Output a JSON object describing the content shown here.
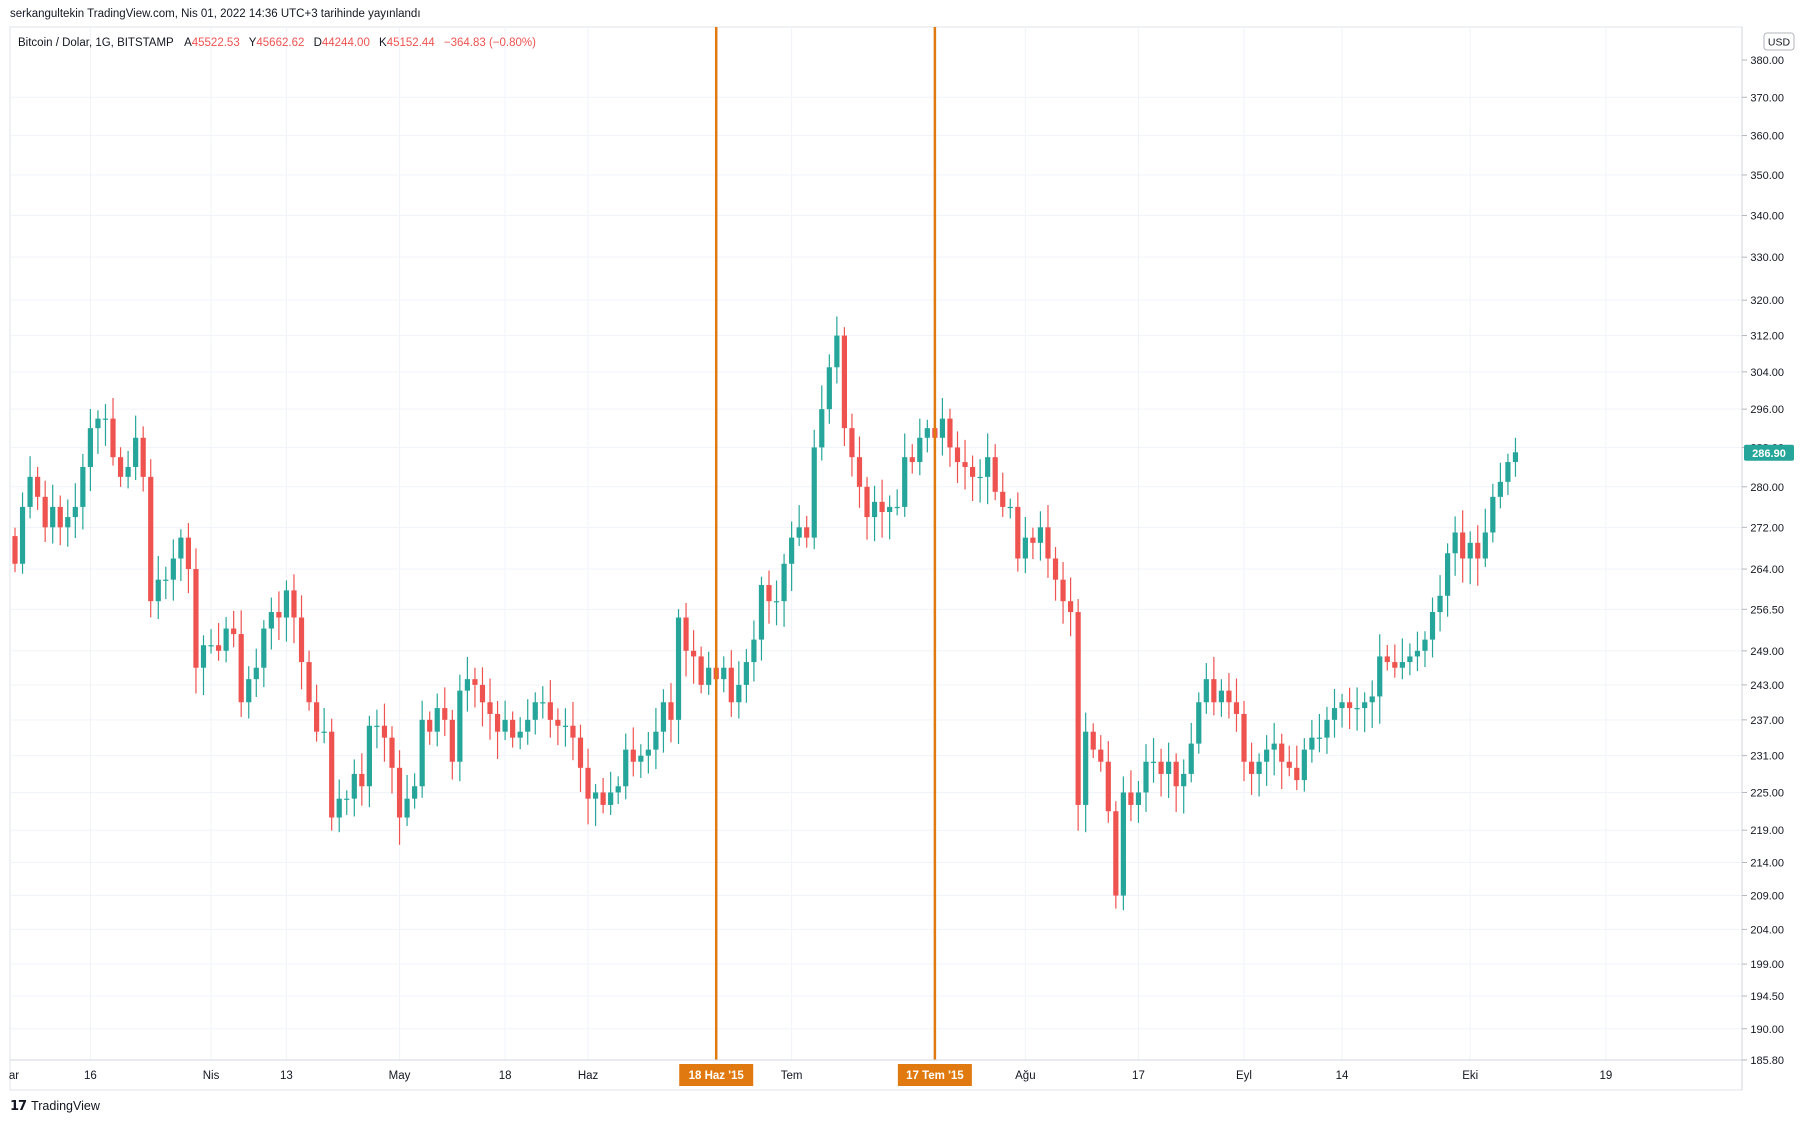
{
  "header": {
    "published": "serkangultekin TradingView.com, Nis 01, 2022 14:36 UTC+3 tarihinde yayınlandı"
  },
  "legend": {
    "symbol": "Bitcoin / Dolar, 1G, BITSTAMP",
    "open_label": "A",
    "open": "45522.53",
    "high_label": "Y",
    "high": "45662.62",
    "low_label": "D",
    "low": "44244.00",
    "close_label": "K",
    "close": "45152.44",
    "change": "−364.83 (−0.80%)"
  },
  "currency": "USD",
  "footer": {
    "brand": "TradingView"
  },
  "colors": {
    "up": "#26a69a",
    "down": "#ef5350",
    "marker": "#e07a10",
    "price_badge": "#26a69a",
    "legend_value": "#ef5350"
  },
  "chart_data": {
    "type": "candlestick",
    "y_scale": "log",
    "ylim": [
      185.8,
      380.0
    ],
    "y_ticks": [
      "380.00",
      "370.00",
      "360.00",
      "350.00",
      "340.00",
      "330.00",
      "320.00",
      "312.00",
      "304.00",
      "296.00",
      "288.00",
      "280.00",
      "272.00",
      "264.00",
      "256.50",
      "249.00",
      "243.00",
      "237.00",
      "231.00",
      "225.00",
      "219.00",
      "214.00",
      "209.00",
      "204.00",
      "199.00",
      "194.50",
      "190.00",
      "185.80"
    ],
    "x_ticks": [
      {
        "label": "ar",
        "index": -3
      },
      {
        "label": "16",
        "index": 10
      },
      {
        "label": "Nis",
        "index": 26
      },
      {
        "label": "13",
        "index": 36
      },
      {
        "label": "May",
        "index": 51
      },
      {
        "label": "18",
        "index": 65
      },
      {
        "label": "Haz",
        "index": 76
      },
      {
        "label": "Tem",
        "index": 103
      },
      {
        "label": "Ağu",
        "index": 134
      },
      {
        "label": "17",
        "index": 149
      },
      {
        "label": "Eyl",
        "index": 163
      },
      {
        "label": "14",
        "index": 176
      },
      {
        "label": "Eki",
        "index": 193
      },
      {
        "label": "19",
        "index": 211
      }
    ],
    "markers": [
      {
        "label": "18 Haz '15",
        "index": 93
      },
      {
        "label": "17 Tem '15",
        "index": 122
      }
    ],
    "last_price": "286.90",
    "closes": [
      265,
      276,
      282,
      278,
      272,
      276,
      272,
      274,
      276,
      284,
      292,
      294,
      294,
      286,
      282,
      284,
      290,
      282,
      258,
      262,
      262,
      266,
      270,
      264,
      246,
      250,
      250,
      249,
      253,
      252,
      240,
      244,
      246,
      253,
      256,
      255,
      260,
      255,
      247,
      240,
      235,
      235,
      221,
      224,
      224,
      228,
      226,
      236,
      236,
      234,
      229,
      221,
      224,
      226,
      237,
      235,
      239,
      237,
      230,
      242,
      244,
      243,
      240,
      238,
      235,
      237,
      234,
      235,
      237,
      240,
      240,
      237,
      236,
      236,
      234,
      229,
      224,
      225,
      223,
      225,
      226,
      232,
      230,
      231,
      232,
      235,
      240,
      237,
      255,
      249,
      248,
      243,
      246,
      244,
      246,
      240,
      243,
      247,
      251,
      261,
      258,
      258,
      265,
      270,
      272,
      270,
      288,
      296,
      305,
      312,
      292,
      286,
      280,
      274,
      277,
      275,
      276,
      276,
      286,
      285,
      290,
      292,
      290,
      294,
      288,
      285,
      284,
      282,
      282,
      286,
      279,
      276,
      276,
      266,
      270,
      269,
      272,
      266,
      262,
      258,
      256,
      223,
      235,
      232,
      230,
      222,
      209,
      225,
      223,
      225,
      230,
      230,
      228,
      230,
      226,
      228,
      233,
      240,
      244,
      240,
      242,
      240,
      238,
      230,
      228,
      230,
      232,
      233,
      230,
      229,
      227,
      232,
      234,
      234,
      237,
      239,
      240,
      239,
      239,
      240,
      241,
      248,
      247,
      246,
      247,
      248,
      249,
      251,
      256,
      259,
      267,
      271,
      266,
      269,
      266,
      271,
      278,
      281,
      285,
      287
    ],
    "series": [
      {
        "name": "BTC/USD",
        "values_ref": "closes"
      }
    ]
  }
}
